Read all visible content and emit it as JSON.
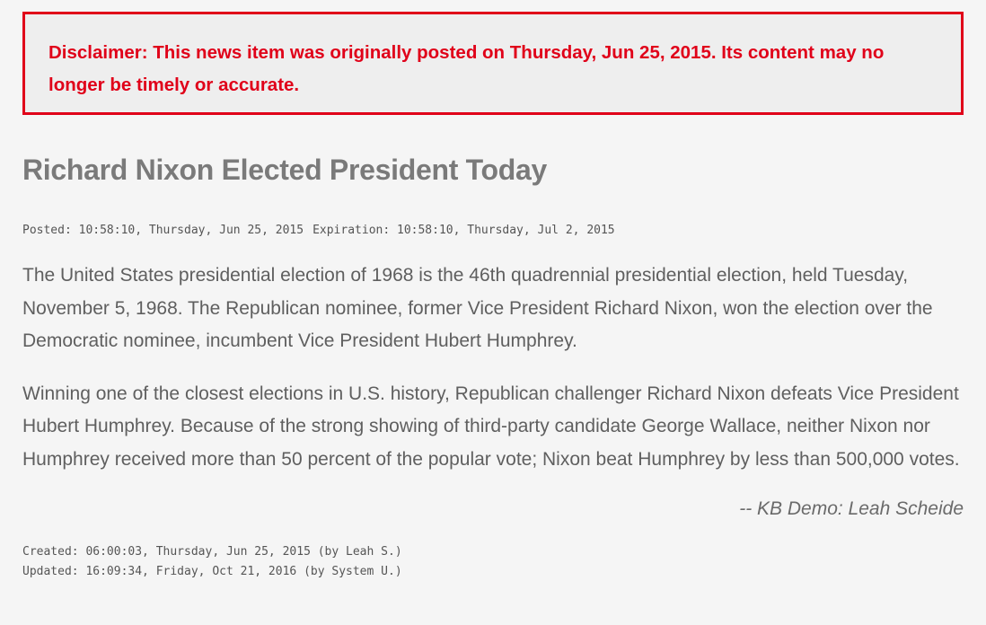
{
  "disclaimer": {
    "text": "Disclaimer: This news item was originally posted on Thursday, Jun 25, 2015. Its content may no longer be timely or accurate."
  },
  "article": {
    "title": "Richard Nixon Elected President Today",
    "posted": "Posted: 10:58:10, Thursday, Jun 25, 2015",
    "expiration": "Expiration: 10:58:10, Thursday, Jul 2, 2015",
    "paragraphs": [
      "The United States presidential election of 1968 is the 46th quadrennial presidential election, held Tuesday, November 5, 1968. The Republican nominee, former Vice President Richard Nixon, won the election over the Democratic nominee, incumbent Vice President Hubert Humphrey.",
      "Winning one of the closest elections in U.S. history, Republican challenger Richard Nixon defeats Vice President Hubert Humphrey. Because of the strong showing of third-party candidate George Wallace, neither Nixon nor Humphrey received more than 50 percent of the popular vote; Nixon beat Humphrey by less than 500,000 votes."
    ],
    "attribution": "-- KB Demo: Leah Scheide",
    "created": "Created: 06:00:03, Thursday, Jun 25, 2015 (by Leah S.)",
    "updated": "Updated: 16:09:34, Friday, Oct 21, 2016 (by System U.)"
  },
  "colors": {
    "accent": "#e00019",
    "background": "#f5f5f5",
    "title": "#7a7a7a"
  }
}
